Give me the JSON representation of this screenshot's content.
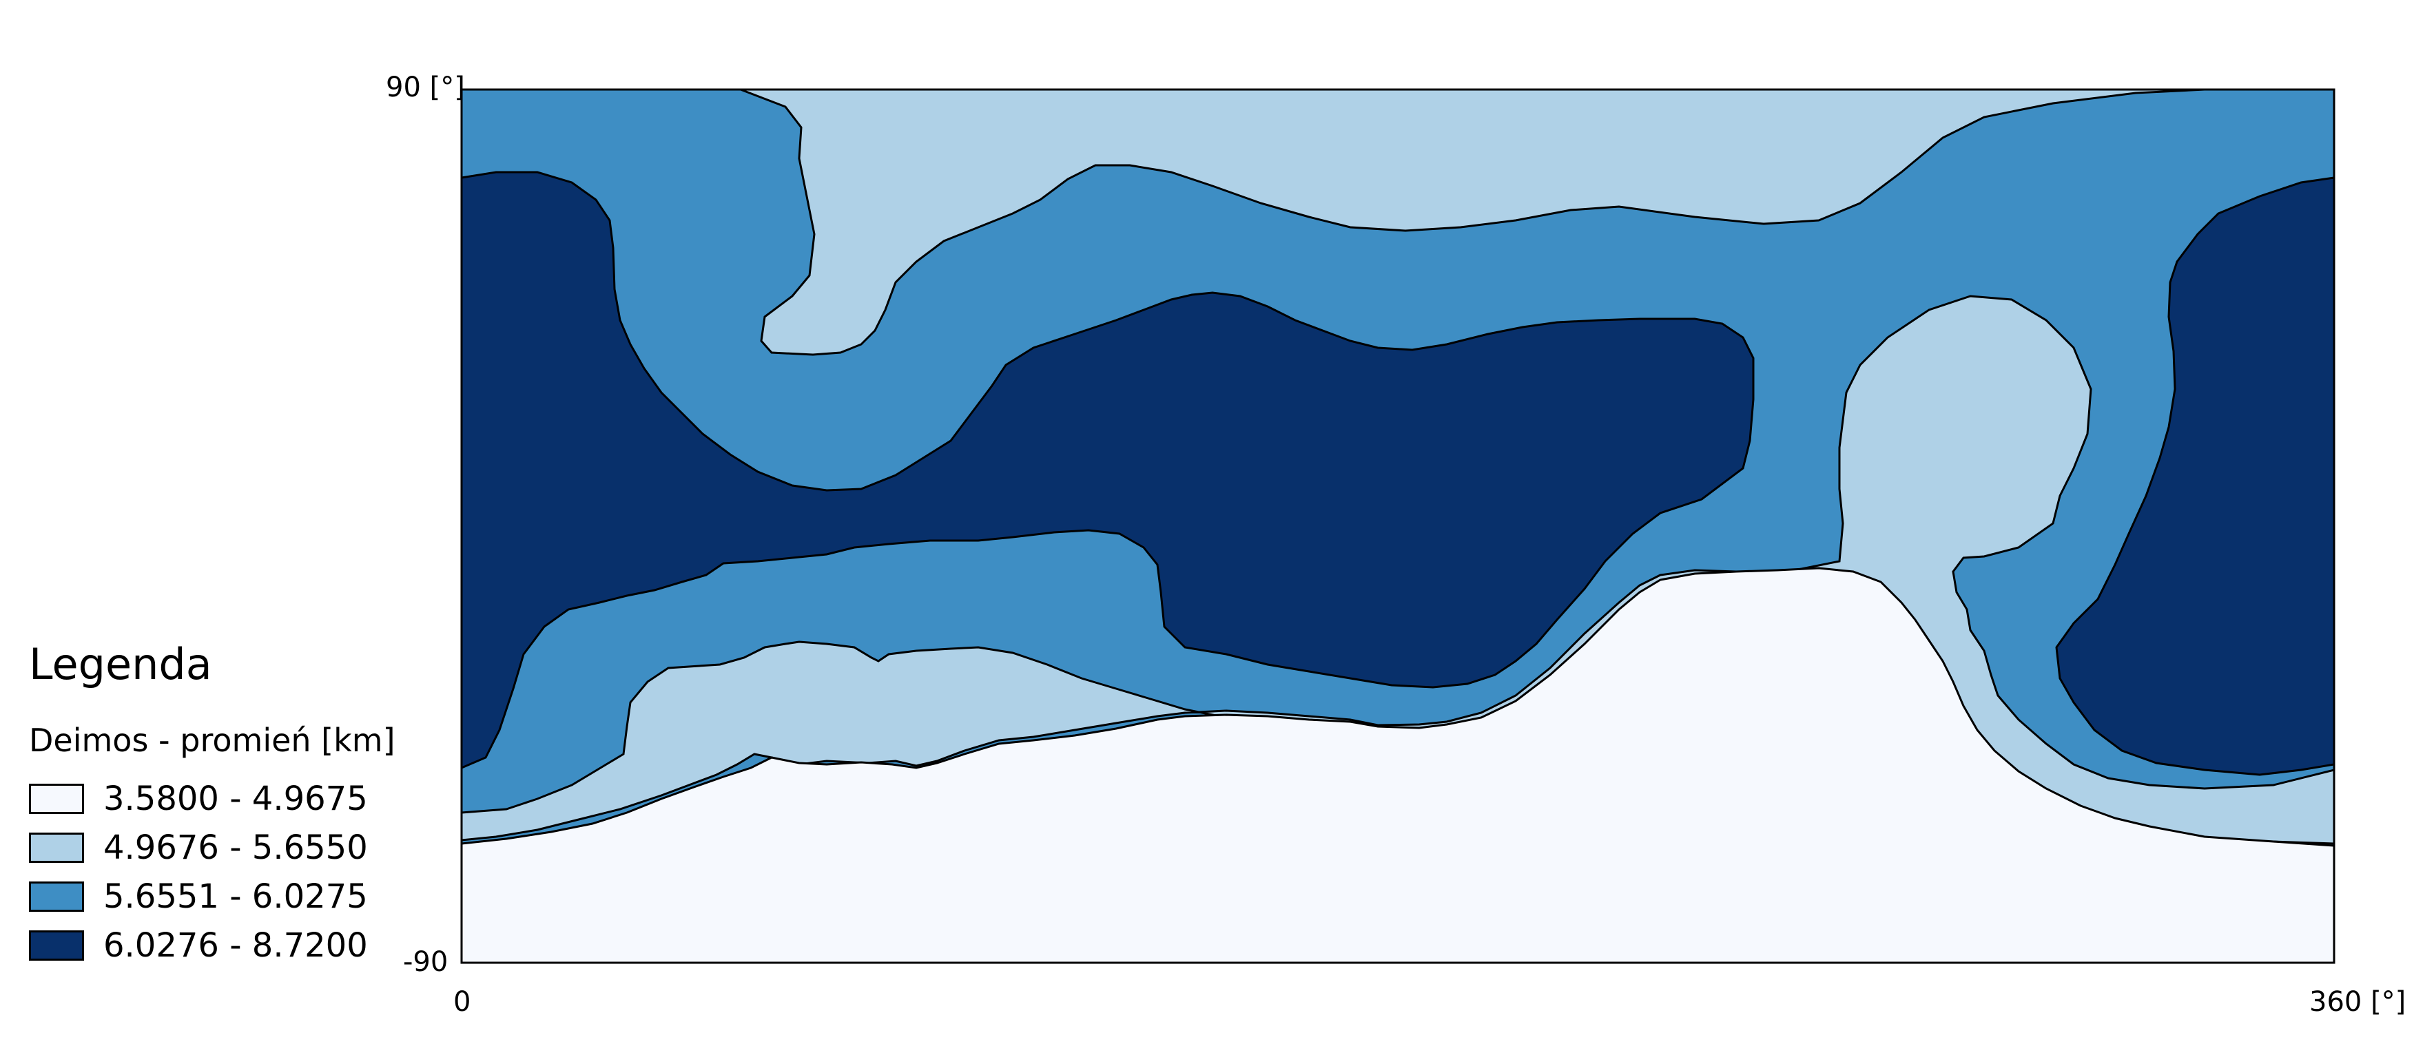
{
  "axes": {
    "lat_max_label": "90 [°]",
    "lat_min_label": "-90",
    "lon_min_label": "0",
    "lon_max_label": "360 [°]"
  },
  "legend": {
    "title": "Legenda",
    "subtitle": "Deimos - promień [km]",
    "classes": [
      {
        "label": "3.5800 - 4.9675",
        "color": "#f6f9fe"
      },
      {
        "label": "4.9676 - 5.6550",
        "color": "#afd1e7"
      },
      {
        "label": "5.6551 - 6.0275",
        "color": "#3e8ec4"
      },
      {
        "label": "6.0276 - 8.7200",
        "color": "#08306b"
      }
    ]
  },
  "chart_data": {
    "type": "heatmap",
    "xlabel": "[°]",
    "ylabel": "[°]",
    "xlim": [
      0,
      360
    ],
    "ylim": [
      -90,
      90
    ],
    "legend_position": "bottom-left",
    "series": [
      {
        "name": "3.5800 - 4.9675"
      },
      {
        "name": "4.9676 - 5.6550"
      },
      {
        "name": "5.6551 - 6.0275"
      },
      {
        "name": "6.0276 - 8.7200"
      }
    ]
  }
}
